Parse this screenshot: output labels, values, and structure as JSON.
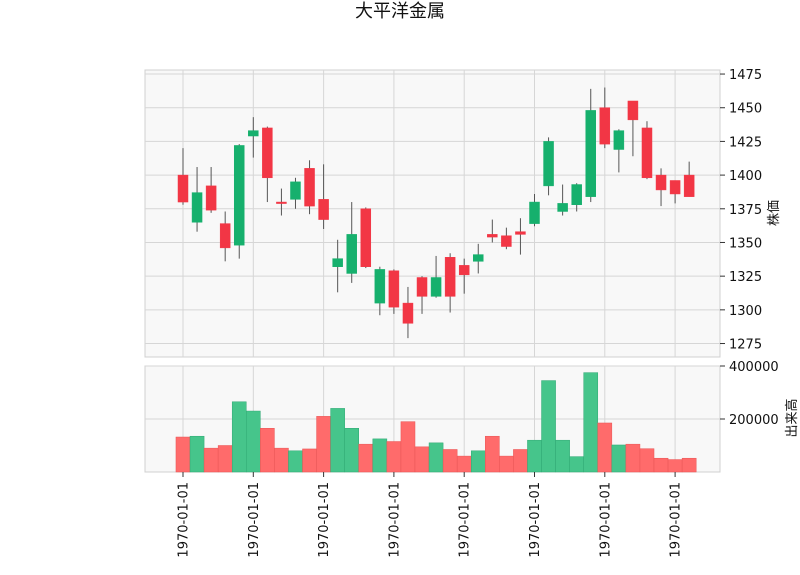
{
  "chart_data": {
    "type": "candlestick",
    "title": "大平洋金属",
    "price_axis": {
      "label": "株価",
      "ylim": [
        1265,
        1478
      ],
      "ticks": [
        1275,
        1300,
        1325,
        1350,
        1375,
        1400,
        1425,
        1450,
        1475
      ]
    },
    "volume_axis": {
      "label": "出来高",
      "ylim": [
        0,
        400000
      ],
      "ticks": [
        200000,
        400000
      ],
      "tick_labels": [
        "200000",
        "400000"
      ]
    },
    "x_tick_labels": [
      "1970-01-01",
      "1970-01-01",
      "1970-01-01",
      "1970-01-01",
      "1970-01-01",
      "1970-01-01",
      "1970-01-01",
      "1970-01-01"
    ],
    "grid": true,
    "colors": {
      "up": "#16b06d",
      "down": "#f23645",
      "up_volume": "#46c58b",
      "down_volume": "#ff6b6b",
      "wick": "#555555",
      "grid": "#d6d6d6",
      "panel_bg": "#f8f8f8"
    },
    "candles": [
      {
        "open": 1400,
        "high": 1420,
        "low": 1378,
        "close": 1380,
        "volume": 132000
      },
      {
        "open": 1365,
        "high": 1406,
        "low": 1358,
        "close": 1387,
        "volume": 135000
      },
      {
        "open": 1392,
        "high": 1406,
        "low": 1372,
        "close": 1374,
        "volume": 90000
      },
      {
        "open": 1364,
        "high": 1373,
        "low": 1336,
        "close": 1346,
        "volume": 100000
      },
      {
        "open": 1348,
        "high": 1423,
        "low": 1338,
        "close": 1422,
        "volume": 265000
      },
      {
        "open": 1429,
        "high": 1443,
        "low": 1413,
        "close": 1433,
        "volume": 230000
      },
      {
        "open": 1435,
        "high": 1436,
        "low": 1380,
        "close": 1398,
        "volume": 165000
      },
      {
        "open": 1380,
        "high": 1390,
        "low": 1370,
        "close": 1379,
        "volume": 90000
      },
      {
        "open": 1382,
        "high": 1398,
        "low": 1375,
        "close": 1395,
        "volume": 80000
      },
      {
        "open": 1405,
        "high": 1411,
        "low": 1371,
        "close": 1377,
        "volume": 87000
      },
      {
        "open": 1382,
        "high": 1408,
        "low": 1360,
        "close": 1367,
        "volume": 210000
      },
      {
        "open": 1332,
        "high": 1352,
        "low": 1313,
        "close": 1338,
        "volume": 240000
      },
      {
        "open": 1327,
        "high": 1380,
        "low": 1320,
        "close": 1356,
        "volume": 165000
      },
      {
        "open": 1375,
        "high": 1376,
        "low": 1331,
        "close": 1332,
        "volume": 105000
      },
      {
        "open": 1305,
        "high": 1332,
        "low": 1296,
        "close": 1330,
        "volume": 125000
      },
      {
        "open": 1329,
        "high": 1330,
        "low": 1297,
        "close": 1302,
        "volume": 115000
      },
      {
        "open": 1305,
        "high": 1317,
        "low": 1279,
        "close": 1290,
        "volume": 190000
      },
      {
        "open": 1324,
        "high": 1325,
        "low": 1297,
        "close": 1310,
        "volume": 95000
      },
      {
        "open": 1310,
        "high": 1340,
        "low": 1309,
        "close": 1324,
        "volume": 110000
      },
      {
        "open": 1339,
        "high": 1342,
        "low": 1298,
        "close": 1310,
        "volume": 85000
      },
      {
        "open": 1333,
        "high": 1338,
        "low": 1312,
        "close": 1326,
        "volume": 60000
      },
      {
        "open": 1336,
        "high": 1349,
        "low": 1327,
        "close": 1341,
        "volume": 80000
      },
      {
        "open": 1356,
        "high": 1367,
        "low": 1350,
        "close": 1354,
        "volume": 135000
      },
      {
        "open": 1355,
        "high": 1361,
        "low": 1345,
        "close": 1347,
        "volume": 60000
      },
      {
        "open": 1358,
        "high": 1368,
        "low": 1341,
        "close": 1356,
        "volume": 85000
      },
      {
        "open": 1364,
        "high": 1386,
        "low": 1362,
        "close": 1380,
        "volume": 120000
      },
      {
        "open": 1392,
        "high": 1428,
        "low": 1385,
        "close": 1425,
        "volume": 345000
      },
      {
        "open": 1373,
        "high": 1393,
        "low": 1370,
        "close": 1379,
        "volume": 120000
      },
      {
        "open": 1378,
        "high": 1394,
        "low": 1373,
        "close": 1393,
        "volume": 58000
      },
      {
        "open": 1384,
        "high": 1464,
        "low": 1380,
        "close": 1448,
        "volume": 375000
      },
      {
        "open": 1450,
        "high": 1465,
        "low": 1420,
        "close": 1423,
        "volume": 185000
      },
      {
        "open": 1419,
        "high": 1434,
        "low": 1402,
        "close": 1433,
        "volume": 102000
      },
      {
        "open": 1455,
        "high": 1455,
        "low": 1414,
        "close": 1441,
        "volume": 105000
      },
      {
        "open": 1435,
        "high": 1440,
        "low": 1397,
        "close": 1398,
        "volume": 88000
      },
      {
        "open": 1400,
        "high": 1405,
        "low": 1377,
        "close": 1389,
        "volume": 52000
      },
      {
        "open": 1396,
        "high": 1396,
        "low": 1379,
        "close": 1386,
        "volume": 47000
      },
      {
        "open": 1400,
        "high": 1410,
        "low": 1384,
        "close": 1384,
        "volume": 52000
      }
    ]
  }
}
